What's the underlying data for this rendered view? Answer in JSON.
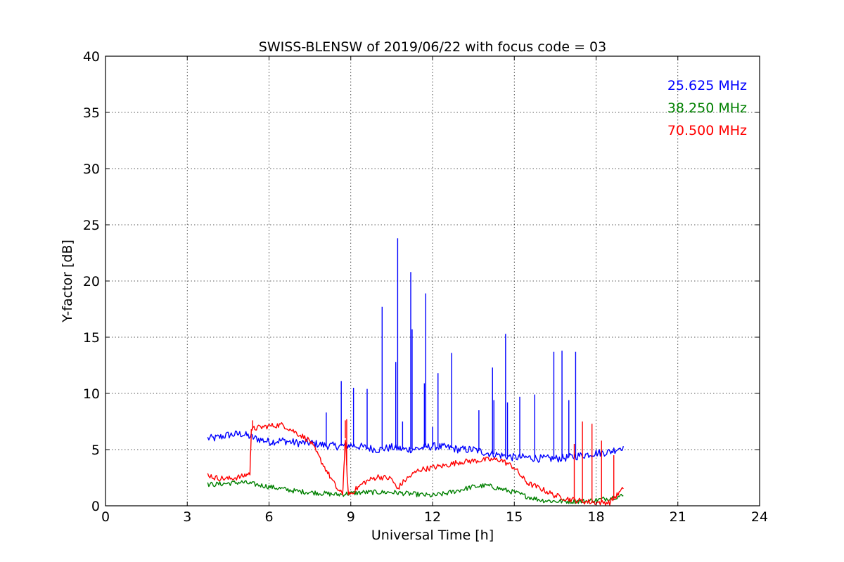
{
  "chart_data": {
    "type": "line",
    "title": "SWISS-BLENSW of 2019/06/22 with focus code = 03",
    "xlabel": "Universal Time [h]",
    "ylabel": "Y-factor [dB]",
    "xlim": [
      0,
      24
    ],
    "ylim": [
      0,
      40
    ],
    "xticks": [
      "0",
      "3",
      "6",
      "9",
      "12",
      "15",
      "18",
      "21",
      "24"
    ],
    "yticks": [
      "0",
      "5",
      "10",
      "15",
      "20",
      "25",
      "30",
      "35",
      "40"
    ],
    "grid": true,
    "legend_position": "top-right",
    "series": [
      {
        "name": "25.625 MHz",
        "color": "#0000ff",
        "x": [
          3.75,
          4.0,
          4.5,
          5.0,
          5.5,
          6.0,
          6.5,
          7.0,
          7.5,
          8.0,
          8.5,
          9.0,
          9.5,
          10.0,
          10.5,
          11.0,
          11.5,
          12.0,
          12.5,
          13.0,
          13.5,
          14.0,
          14.5,
          15.0,
          15.5,
          16.0,
          16.5,
          17.0,
          17.5,
          18.0,
          18.5,
          19.0
        ],
        "y": [
          6.0,
          6.0,
          6.3,
          6.4,
          6.0,
          5.7,
          5.8,
          5.6,
          5.6,
          5.4,
          5.3,
          5.4,
          5.2,
          5.0,
          5.2,
          5.0,
          5.1,
          5.3,
          5.2,
          5.0,
          5.0,
          4.7,
          4.5,
          4.3,
          4.3,
          4.2,
          4.2,
          4.3,
          4.5,
          4.7,
          4.8,
          5.3
        ],
        "spikes": [
          {
            "x": 8.1,
            "y": 8.3
          },
          {
            "x": 8.65,
            "y": 11.1
          },
          {
            "x": 9.1,
            "y": 10.5
          },
          {
            "x": 9.6,
            "y": 10.4
          },
          {
            "x": 10.15,
            "y": 17.7
          },
          {
            "x": 10.65,
            "y": 12.8
          },
          {
            "x": 10.72,
            "y": 23.8
          },
          {
            "x": 10.9,
            "y": 7.5
          },
          {
            "x": 11.2,
            "y": 20.8
          },
          {
            "x": 11.25,
            "y": 15.7
          },
          {
            "x": 11.7,
            "y": 10.9
          },
          {
            "x": 11.75,
            "y": 18.9
          },
          {
            "x": 12.0,
            "y": 7.0
          },
          {
            "x": 12.2,
            "y": 11.8
          },
          {
            "x": 12.7,
            "y": 13.6
          },
          {
            "x": 13.7,
            "y": 8.5
          },
          {
            "x": 14.2,
            "y": 12.3
          },
          {
            "x": 14.25,
            "y": 9.4
          },
          {
            "x": 14.68,
            "y": 15.3
          },
          {
            "x": 14.75,
            "y": 9.2
          },
          {
            "x": 15.2,
            "y": 9.7
          },
          {
            "x": 15.75,
            "y": 9.9
          },
          {
            "x": 16.45,
            "y": 13.7
          },
          {
            "x": 16.75,
            "y": 13.8
          },
          {
            "x": 17.0,
            "y": 9.4
          },
          {
            "x": 17.25,
            "y": 13.7
          }
        ]
      },
      {
        "name": "38.250 MHz",
        "color": "#008000",
        "x": [
          3.75,
          4.0,
          4.5,
          5.0,
          5.5,
          6.0,
          6.5,
          7.0,
          7.5,
          8.0,
          8.5,
          9.0,
          9.5,
          10.0,
          10.5,
          11.0,
          11.5,
          12.0,
          12.5,
          13.0,
          13.5,
          14.0,
          14.5,
          15.0,
          15.5,
          16.0,
          16.5,
          17.0,
          17.5,
          18.0,
          18.5,
          19.0
        ],
        "y": [
          1.9,
          1.9,
          2.0,
          2.1,
          1.9,
          1.7,
          1.5,
          1.3,
          1.2,
          1.1,
          1.0,
          1.1,
          1.2,
          1.2,
          1.2,
          1.1,
          1.0,
          0.9,
          1.1,
          1.4,
          1.7,
          1.8,
          1.5,
          1.2,
          0.8,
          0.5,
          0.4,
          0.4,
          0.4,
          0.5,
          0.7,
          0.9
        ],
        "spikes": []
      },
      {
        "name": "70.500 MHz",
        "color": "#ff0000",
        "x": [
          3.75,
          4.0,
          4.5,
          5.0,
          5.3,
          5.35,
          5.5,
          6.0,
          6.5,
          7.0,
          7.5,
          8.0,
          8.5,
          8.7,
          8.8,
          8.9,
          9.0,
          9.5,
          10.0,
          10.5,
          10.7,
          11.0,
          11.5,
          12.0,
          12.5,
          13.0,
          13.5,
          14.0,
          14.5,
          15.0,
          15.3,
          15.5,
          16.0,
          16.5,
          17.0,
          17.5,
          18.0,
          18.5,
          19.0
        ],
        "y": [
          2.8,
          2.5,
          2.4,
          2.6,
          2.9,
          6.8,
          6.9,
          7.1,
          7.2,
          6.5,
          5.8,
          3.6,
          1.5,
          1.0,
          6.0,
          1.2,
          1.1,
          2.1,
          2.6,
          2.4,
          1.5,
          2.3,
          3.2,
          3.4,
          3.6,
          3.9,
          4.0,
          4.1,
          4.1,
          3.4,
          2.5,
          2.0,
          1.5,
          0.9,
          0.6,
          0.4,
          0.3,
          0.3,
          1.5
        ],
        "spikes": [
          {
            "x": 5.4,
            "y": 7.6
          },
          {
            "x": 8.85,
            "y": 7.7
          },
          {
            "x": 8.8,
            "y": 7.6
          },
          {
            "x": 17.2,
            "y": 5.5
          },
          {
            "x": 17.5,
            "y": 7.5
          },
          {
            "x": 17.85,
            "y": 7.3
          },
          {
            "x": 18.2,
            "y": 5.8
          },
          {
            "x": 18.65,
            "y": 4.5
          }
        ]
      }
    ]
  }
}
